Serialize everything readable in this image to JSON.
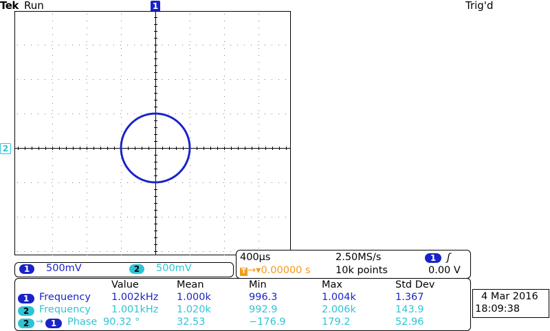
{
  "header": {
    "brand": "Tek",
    "run_state": "Run",
    "trigger_status": "Trig'd"
  },
  "markers": {
    "ch1_label": "1",
    "ch2_label": "2"
  },
  "scale": {
    "ch1": {
      "badge": "1",
      "value": "500mV"
    },
    "ch2": {
      "badge": "2",
      "value": "500mV"
    }
  },
  "timebase": {
    "time_per_div": "400µs",
    "sample_rate": "2.50MS/s",
    "trigger_offset_icon": "T",
    "trigger_offset": "0.00000 s",
    "record_length": "10k points",
    "trigger_source": "1",
    "trigger_slope_icon": "rising-edge-icon",
    "trigger_slope_glyph": "ʃ",
    "trigger_level": "0.00 V"
  },
  "measurements": {
    "headers": [
      "Value",
      "Mean",
      "Min",
      "Max",
      "Std Dev"
    ],
    "rows": [
      {
        "source": "1",
        "label": "Frequency",
        "value": "1.002kHz",
        "mean": "1.000k",
        "min": "996.3",
        "max": "1.004k",
        "std": "1.367"
      },
      {
        "source": "2",
        "label": "Frequency",
        "value": "1.001kHz",
        "mean": "1.020k",
        "min": "992.9",
        "max": "2.006k",
        "std": "143.9"
      },
      {
        "source": "2",
        "arrow": "→",
        "target": "1",
        "label": "Phase",
        "value": "90.32 °",
        "mean": "32.53",
        "min": "−176.9",
        "max": "179.2",
        "std": "52.96"
      }
    ]
  },
  "datetime": {
    "date": "4 Mar 2016",
    "time": "18:09:38"
  },
  "colors": {
    "ch1": "#1a23c8",
    "ch2": "#2ec4d6",
    "trigger": "#f39a1a"
  }
}
